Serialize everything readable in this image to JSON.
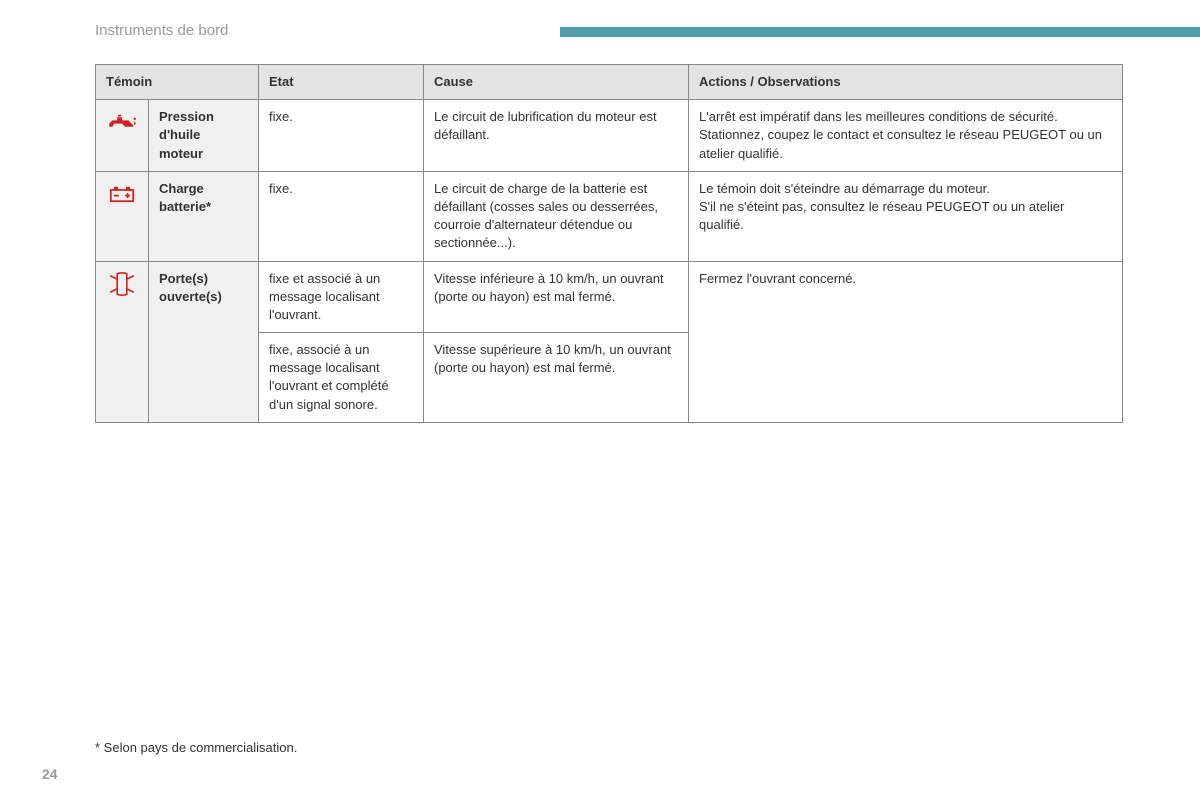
{
  "section_title": "Instruments de bord",
  "page_number": "24",
  "footnote": "* Selon pays de commercialisation.",
  "colors": {
    "header_bar": "#4f9aa8",
    "icon_red": "#d6201f",
    "th_bg": "#e3e3e3",
    "label_bg": "#f0f0f0",
    "border": "#888888",
    "text": "#333333",
    "muted": "#9a9a9a"
  },
  "table": {
    "headers": {
      "temoin": "Témoin",
      "etat": "Etat",
      "cause": "Cause",
      "actions": "Actions / Observations"
    },
    "rows": [
      {
        "icon": "oil-pressure",
        "label": "Pression d'huile moteur",
        "states": [
          {
            "etat": "fixe.",
            "cause": "Le circuit de lubrification du moteur est défaillant.",
            "action": "L'arrêt est impératif dans les meilleures conditions de sécurité.\nStationnez, coupez le contact et consultez le réseau PEUGEOT ou un atelier qualifié."
          }
        ]
      },
      {
        "icon": "battery",
        "label": "Charge batterie*",
        "states": [
          {
            "etat": "fixe.",
            "cause": "Le circuit de charge de la batterie est défaillant (cosses sales ou desserrées, courroie d'alternateur détendue ou sectionnée...).",
            "action": "Le témoin doit s'éteindre au démarrage du moteur.\nS'il ne s'éteint pas, consultez le réseau PEUGEOT ou un atelier qualifié."
          }
        ]
      },
      {
        "icon": "door-open",
        "label": "Porte(s) ouverte(s)",
        "states": [
          {
            "etat": "fixe et associé à un message localisant l'ouvrant.",
            "cause": "Vitesse inférieure à 10 km/h, un ouvrant (porte ou hayon) est mal fermé.",
            "action": "Fermez l'ouvrant concerné."
          },
          {
            "etat": "fixe, associé à un message localisant l'ouvrant et complété d'un signal sonore.",
            "cause": "Vitesse supérieure à 10 km/h, un ouvrant (porte ou hayon) est mal fermé.",
            "action": null
          }
        ]
      }
    ]
  }
}
